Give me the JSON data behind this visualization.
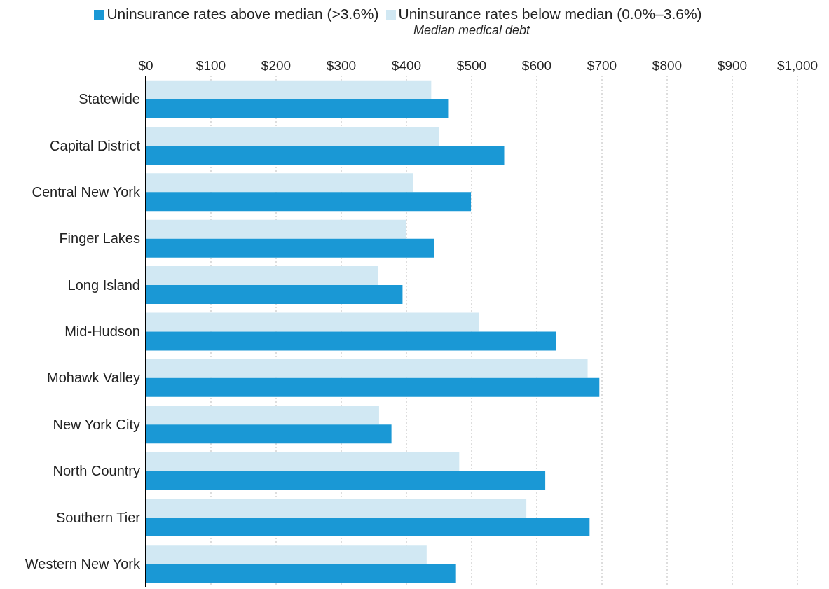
{
  "chart_data": {
    "type": "bar",
    "orientation": "horizontal",
    "xlabel": "Median medical debt",
    "categories": [
      "Statewide",
      "Capital District",
      "Central New York",
      "Finger Lakes",
      "Long Island",
      "Mid-Hudson",
      "Mohawk Valley",
      "New York City",
      "North Country",
      "Southern Tier",
      "Western New York"
    ],
    "series": [
      {
        "name": "Uninsurance rates below median (0.0%–3.6%)",
        "color": "#d1e8f3",
        "values": [
          438,
          450,
          410,
          399,
          357,
          511,
          678,
          358,
          481,
          584,
          431
        ]
      },
      {
        "name": "Uninsurance rates above median (>3.6%)",
        "color": "#1a98d5",
        "values": [
          465,
          550,
          499,
          442,
          394,
          630,
          696,
          377,
          613,
          681,
          476
        ]
      }
    ],
    "xlim": [
      0,
      1000
    ],
    "xticks": [
      {
        "value": 0,
        "label": "$0"
      },
      {
        "value": 100,
        "label": "$100"
      },
      {
        "value": 200,
        "label": "$200"
      },
      {
        "value": 300,
        "label": "$300"
      },
      {
        "value": 400,
        "label": "$400"
      },
      {
        "value": 500,
        "label": "$500"
      },
      {
        "value": 600,
        "label": "$600"
      },
      {
        "value": 700,
        "label": "$700"
      },
      {
        "value": 800,
        "label": "$800"
      },
      {
        "value": 900,
        "label": "$900"
      },
      {
        "value": 1000,
        "label": "$1,000"
      }
    ],
    "grid": "x",
    "legend": "top"
  }
}
